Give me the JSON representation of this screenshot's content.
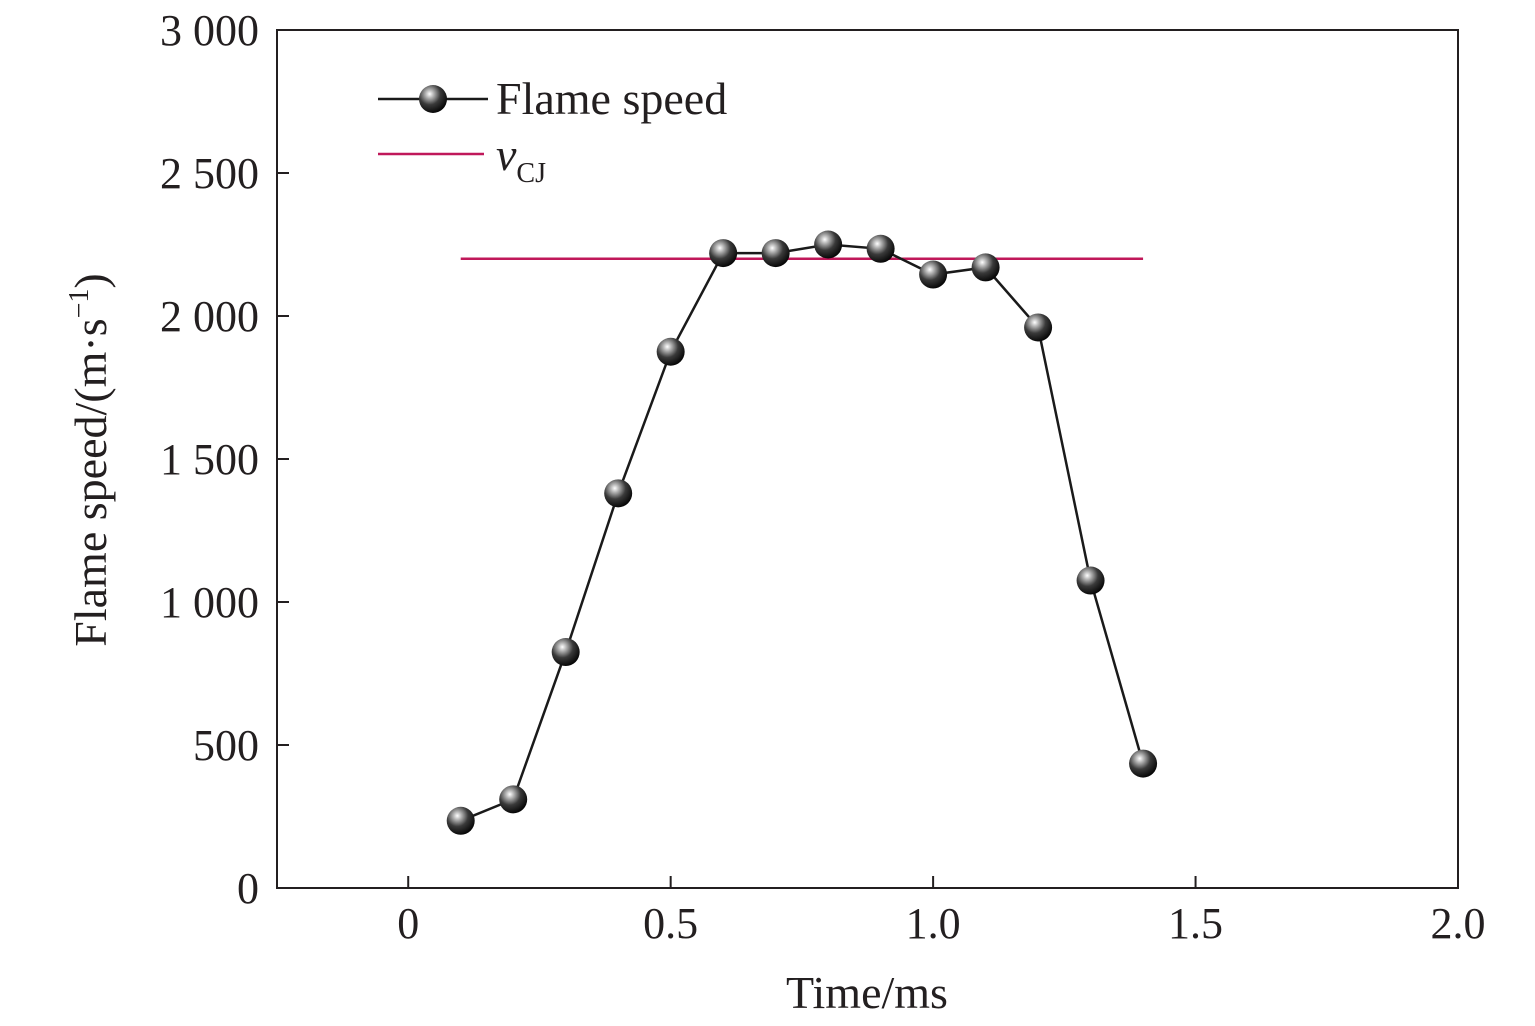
{
  "chart_data": {
    "type": "line",
    "xlabel": "Time/ms",
    "ylabel": "Flame speed/(m·s",
    "ylabel_sup": "−1",
    "ylabel_close": ")",
    "xlim": [
      -0.25,
      2.0
    ],
    "ylim": [
      0,
      3000
    ],
    "xticks": [
      0,
      0.5,
      1.0,
      1.5,
      2.0
    ],
    "xtick_labels": [
      "0",
      "0.5",
      "1.0",
      "1.5",
      "2.0"
    ],
    "yticks": [
      0,
      500,
      1000,
      1500,
      2000,
      2500,
      3000
    ],
    "ytick_labels": [
      "0",
      "500",
      "1 000",
      "1 500",
      "2 000",
      "2 500",
      "3 000"
    ],
    "grid": false,
    "legend_position": "top-left",
    "series": [
      {
        "name": "Flame speed",
        "color": "#1a1a1a",
        "marker": "sphere",
        "x": [
          0.1,
          0.2,
          0.3,
          0.4,
          0.5,
          0.6,
          0.7,
          0.8,
          0.9,
          1.0,
          1.1,
          1.2,
          1.3,
          1.4
        ],
        "y": [
          235,
          310,
          825,
          1380,
          1875,
          2220,
          2220,
          2250,
          2235,
          2145,
          2170,
          1960,
          1075,
          435
        ]
      }
    ],
    "reference_line": {
      "name_main": "v",
      "name_sub": "CJ",
      "color": "#c0185a",
      "x": [
        0.1,
        1.4
      ],
      "y": 2200
    }
  }
}
